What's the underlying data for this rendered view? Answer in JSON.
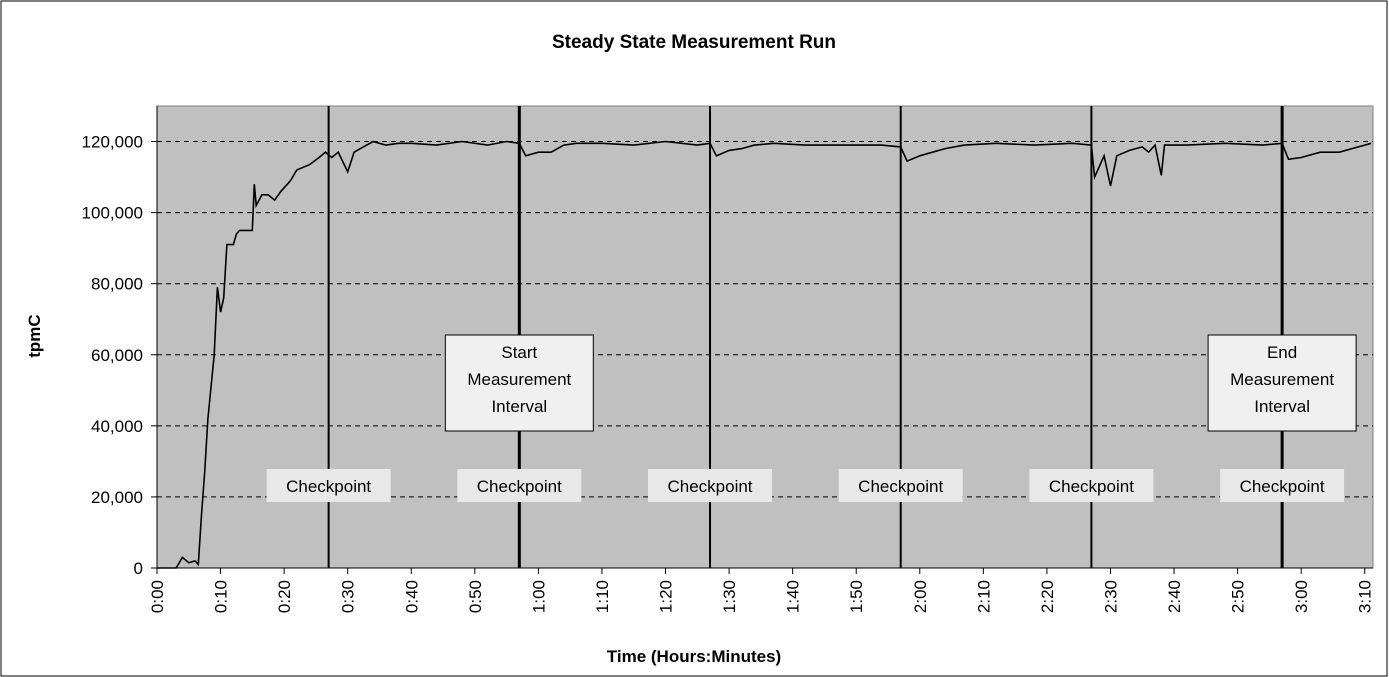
{
  "chart_data": {
    "type": "line",
    "title": "Steady State Measurement Run",
    "x_label": "Time (Hours:Minutes)",
    "y_label": "tpmC",
    "xlim": [
      0,
      191.3
    ],
    "ylim": [
      0,
      130000
    ],
    "yticks": [
      0,
      {
        "value": 20000,
        "label": "20,000"
      },
      {
        "value": 40000,
        "label": "40,000"
      },
      {
        "value": 60000,
        "label": "60,000"
      },
      {
        "value": 80000,
        "label": "80,000"
      },
      {
        "value": 100000,
        "label": "100,000"
      },
      {
        "value": 120000,
        "label": "120,000"
      }
    ],
    "xticks": [
      {
        "value": 0,
        "label": "0:00"
      },
      {
        "value": 10,
        "label": "0:10"
      },
      {
        "value": 20,
        "label": "0:20"
      },
      {
        "value": 30,
        "label": "0:30"
      },
      {
        "value": 40,
        "label": "0:40"
      },
      {
        "value": 50,
        "label": "0:50"
      },
      {
        "value": 60,
        "label": "1:00"
      },
      {
        "value": 70,
        "label": "1:10"
      },
      {
        "value": 80,
        "label": "1:20"
      },
      {
        "value": 90,
        "label": "1:30"
      },
      {
        "value": 100,
        "label": "1:40"
      },
      {
        "value": 110,
        "label": "1:50"
      },
      {
        "value": 120,
        "label": "2:00"
      },
      {
        "value": 130,
        "label": "2:10"
      },
      {
        "value": 140,
        "label": "2:20"
      },
      {
        "value": 150,
        "label": "2:30"
      },
      {
        "value": 160,
        "label": "2:40"
      },
      {
        "value": 170,
        "label": "2:50"
      },
      {
        "value": 180,
        "label": "3:00"
      },
      {
        "value": 190,
        "label": "3:10"
      }
    ],
    "grid": true,
    "plot_color": "#c0c0c0",
    "series": [
      {
        "color": "#000000",
        "x": [
          0,
          3,
          4,
          5,
          6,
          6.5,
          7,
          7.5,
          8,
          9,
          9.5,
          10,
          10.5,
          11,
          12,
          12.5,
          13,
          15,
          15.3,
          15.6,
          16.5,
          17.5,
          18.5,
          19.5,
          21,
          22,
          24,
          25.5,
          26.5,
          27.5,
          28.5,
          30,
          31,
          32,
          34,
          36,
          38,
          40,
          44,
          48,
          52,
          55,
          57,
          58,
          60,
          62,
          64,
          66,
          70,
          75,
          80,
          85,
          87,
          88,
          90,
          92,
          94,
          97,
          102,
          108,
          114,
          117,
          118,
          120,
          122,
          124,
          127,
          132,
          138,
          144,
          147,
          147.5,
          149,
          150,
          151,
          153,
          155,
          156,
          157,
          158,
          158.5,
          162,
          168,
          174,
          177,
          178,
          180,
          183,
          186,
          189,
          190,
          191
        ],
        "values": [
          0,
          0,
          3000,
          1500,
          2000,
          1000,
          15000,
          27000,
          42000,
          60000,
          79000,
          72000,
          76000,
          91000,
          91000,
          94000,
          95000,
          95000,
          108000,
          102000,
          105000,
          105000,
          103500,
          106000,
          109000,
          112000,
          113500,
          115500,
          117000,
          115500,
          117000,
          111500,
          117000,
          118000,
          120000,
          119000,
          119500,
          119500,
          119000,
          120000,
          119000,
          120000,
          119500,
          116000,
          117000,
          117000,
          119000,
          119500,
          119500,
          119000,
          120000,
          119000,
          119500,
          116000,
          117500,
          118000,
          119000,
          119500,
          119000,
          119000,
          119000,
          118500,
          114500,
          116000,
          117000,
          118000,
          119000,
          119500,
          119000,
          119500,
          119000,
          110000,
          116000,
          107500,
          116000,
          117500,
          118500,
          117000,
          119000,
          110500,
          119000,
          119000,
          119500,
          119000,
          119500,
          115000,
          115500,
          117000,
          117000,
          118500,
          119000,
          119500
        ]
      }
    ],
    "checkpoints": {
      "label": "Checkpoint",
      "x": [
        27,
        57,
        87,
        117,
        147,
        177
      ]
    },
    "interval_labels": [
      [
        "Start",
        "Measurement",
        "Interval"
      ],
      [
        "End",
        "Measurement",
        "Interval"
      ]
    ]
  }
}
